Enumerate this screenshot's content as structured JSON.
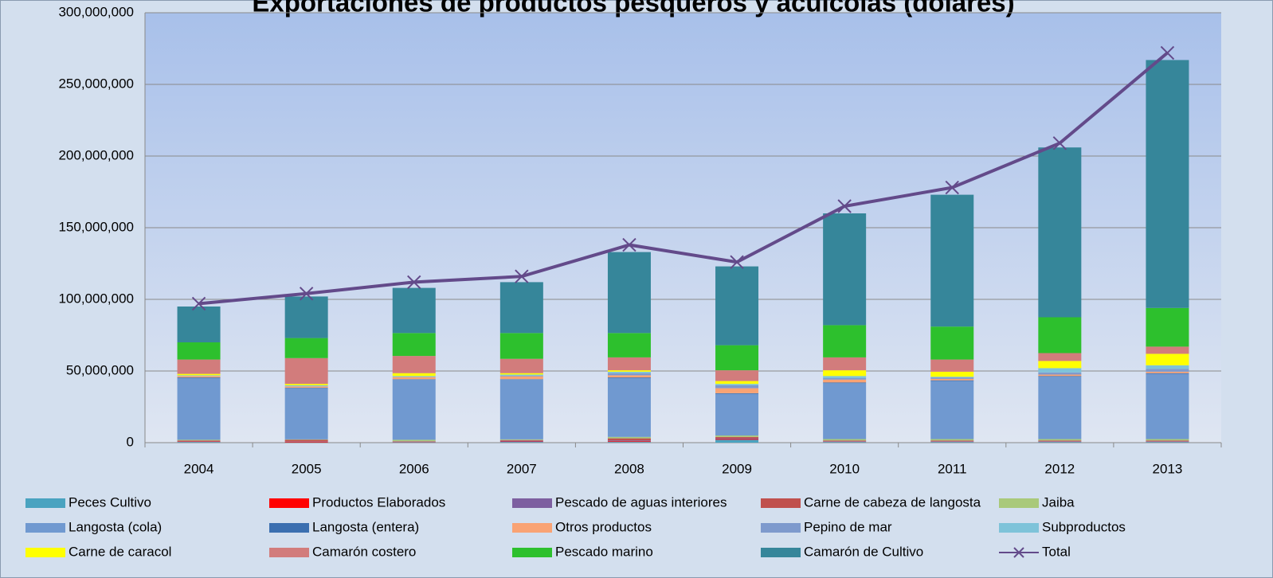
{
  "chart_data": {
    "type": "stacked-bar-line",
    "title": "Exportaciones de productos pesqueros y acuícolas (dólares)",
    "categories": [
      "2004",
      "2005",
      "2006",
      "2007",
      "2008",
      "2009",
      "2010",
      "2011",
      "2012",
      "2013"
    ],
    "ylim": [
      0,
      300000000
    ],
    "yticks": [
      0,
      {
        "value": 50000000,
        "label": "50,000,000"
      },
      {
        "value": 100000000,
        "label": "100,000,000"
      },
      {
        "value": 150000000,
        "label": "150,000,000"
      },
      {
        "value": 200000000,
        "label": "200,000,000"
      },
      {
        "value": 250000000,
        "label": "250,000,000"
      },
      {
        "value": 300000000,
        "label": "300,000,000"
      }
    ],
    "grid": true,
    "legend": "bottom",
    "series": [
      {
        "name": "Peces Cultivo",
        "color": "#4aa3c0",
        "values": [
          500000,
          200000,
          300000,
          500000,
          500000,
          2000000,
          500000,
          500000,
          500000,
          500000
        ]
      },
      {
        "name": "Productos Elaborados",
        "color": "#ff0000",
        "values": [
          300000,
          500000,
          200000,
          300000,
          500000,
          500000,
          200000,
          200000,
          200000,
          200000
        ]
      },
      {
        "name": "Pescado de aguas interiores",
        "color": "#7d5fa0",
        "values": [
          200000,
          200000,
          200000,
          500000,
          500000,
          500000,
          300000,
          300000,
          300000,
          300000
        ]
      },
      {
        "name": "Carne de cabeza de langosta",
        "color": "#c0504d",
        "values": [
          500000,
          1100000,
          300000,
          500000,
          1500000,
          1000000,
          500000,
          500000,
          500000,
          500000
        ]
      },
      {
        "name": "Jaiba",
        "color": "#a9c97a",
        "values": [
          500000,
          300000,
          1000000,
          500000,
          1000000,
          1000000,
          1000000,
          1000000,
          1000000,
          1000000
        ]
      },
      {
        "name": "Langosta (cola)",
        "color": "#7099d0",
        "values": [
          43000000,
          35700000,
          42000000,
          41700000,
          41000000,
          29000000,
          39000000,
          40500000,
          43500000,
          45500000
        ]
      },
      {
        "name": "Langosta (entera)",
        "color": "#3b6fb0",
        "values": [
          500000,
          300000,
          300000,
          300000,
          500000,
          500000,
          500000,
          500000,
          500000,
          500000
        ]
      },
      {
        "name": "Otros productos",
        "color": "#f9a374",
        "values": [
          1000000,
          1000000,
          1500000,
          2000000,
          1500000,
          3500000,
          2000000,
          1000000,
          1000000,
          1000000
        ]
      },
      {
        "name": "Pepino de mar",
        "color": "#7e9acd",
        "values": [
          0,
          0,
          0,
          500000,
          1500000,
          2000000,
          1000000,
          1000000,
          1500000,
          2000000
        ]
      },
      {
        "name": "Subproductos",
        "color": "#7ec3d9",
        "values": [
          500000,
          700000,
          700000,
          700000,
          1000000,
          1000000,
          1500000,
          500000,
          3000000,
          2500000
        ]
      },
      {
        "name": "Carne de caracol",
        "color": "#ffff00",
        "values": [
          1000000,
          1000000,
          2000000,
          1000000,
          1000000,
          2000000,
          4000000,
          3500000,
          5000000,
          8000000
        ]
      },
      {
        "name": "Camarón costero",
        "color": "#d27c7c",
        "values": [
          10000000,
          18000000,
          12000000,
          10000000,
          9000000,
          7500000,
          9000000,
          8500000,
          5500000,
          5000000
        ]
      },
      {
        "name": "Pescado marino",
        "color": "#2dc02d",
        "values": [
          12000000,
          14000000,
          16000000,
          18000000,
          17000000,
          17500000,
          22500000,
          23000000,
          25000000,
          27000000
        ]
      },
      {
        "name": "Camarón de Cultivo",
        "color": "#36869a",
        "values": [
          25000000,
          29000000,
          31500000,
          35500000,
          56500000,
          55000000,
          78000000,
          92000000,
          118500000,
          173000000
        ]
      },
      {
        "name": "Total",
        "color": "#634a8a",
        "kind": "line",
        "values": [
          97000000,
          104000000,
          112000000,
          116000000,
          138000000,
          126000000,
          165000000,
          178000000,
          209000000,
          272000000
        ]
      }
    ]
  }
}
